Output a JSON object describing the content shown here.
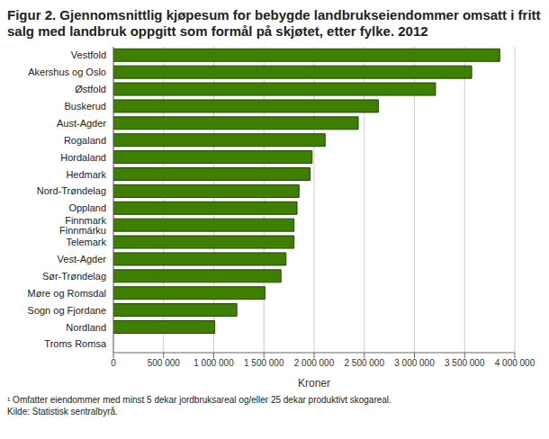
{
  "chart_data": {
    "type": "bar",
    "orientation": "horizontal",
    "title": "Figur 2. Gjennomsnittlig kjøpesum for bebygde landbrukseiendommer omsatt i fritt salg med landbruk oppgitt som formål på skjøtet, etter fylke. 2012",
    "xlabel": "Kroner",
    "categories": [
      "Vestfold",
      "Akershus og Oslo",
      "Østfold",
      "Buskerud",
      "Aust-Agder",
      "Rogaland",
      "Hordaland",
      "Hedmark",
      "Nord-Trøndelag",
      "Oppland",
      "Finnmark Finnmárku",
      "Telemark",
      "Vest-Agder",
      "Sør-Trøndelag",
      "Møre og Romsdal",
      "Sogn og Fjordane",
      "Nordland",
      "Troms Romsa"
    ],
    "values": [
      3850000,
      3570000,
      3210000,
      2640000,
      2440000,
      2110000,
      1980000,
      1960000,
      1850000,
      1830000,
      1800000,
      1800000,
      1720000,
      1670000,
      1510000,
      1230000,
      1010000,
      null
    ],
    "color": "#3f7f00",
    "xlim": [
      0,
      4000000
    ],
    "xticks": [
      0,
      {
        "value": 500000,
        "label": "500 000"
      },
      {
        "value": 1000000,
        "label": "1 000 000"
      },
      {
        "value": 1500000,
        "label": "1 500 000"
      },
      {
        "value": 2000000,
        "label": "2 000 000"
      },
      {
        "value": 2500000,
        "label": "2 500 000"
      },
      {
        "value": 3000000,
        "label": "3 000 000"
      },
      {
        "value": 3500000,
        "label": "3 500 000"
      },
      {
        "value": 4000000,
        "label": "4 000 000"
      }
    ],
    "grid": true,
    "notes": [
      "¹ Omfatter eiendommer med minst 5 dekar jordbruksareal og/eller 25 dekar produktivt skogareal.",
      "Kilde: Statistisk sentralbyrå."
    ]
  }
}
